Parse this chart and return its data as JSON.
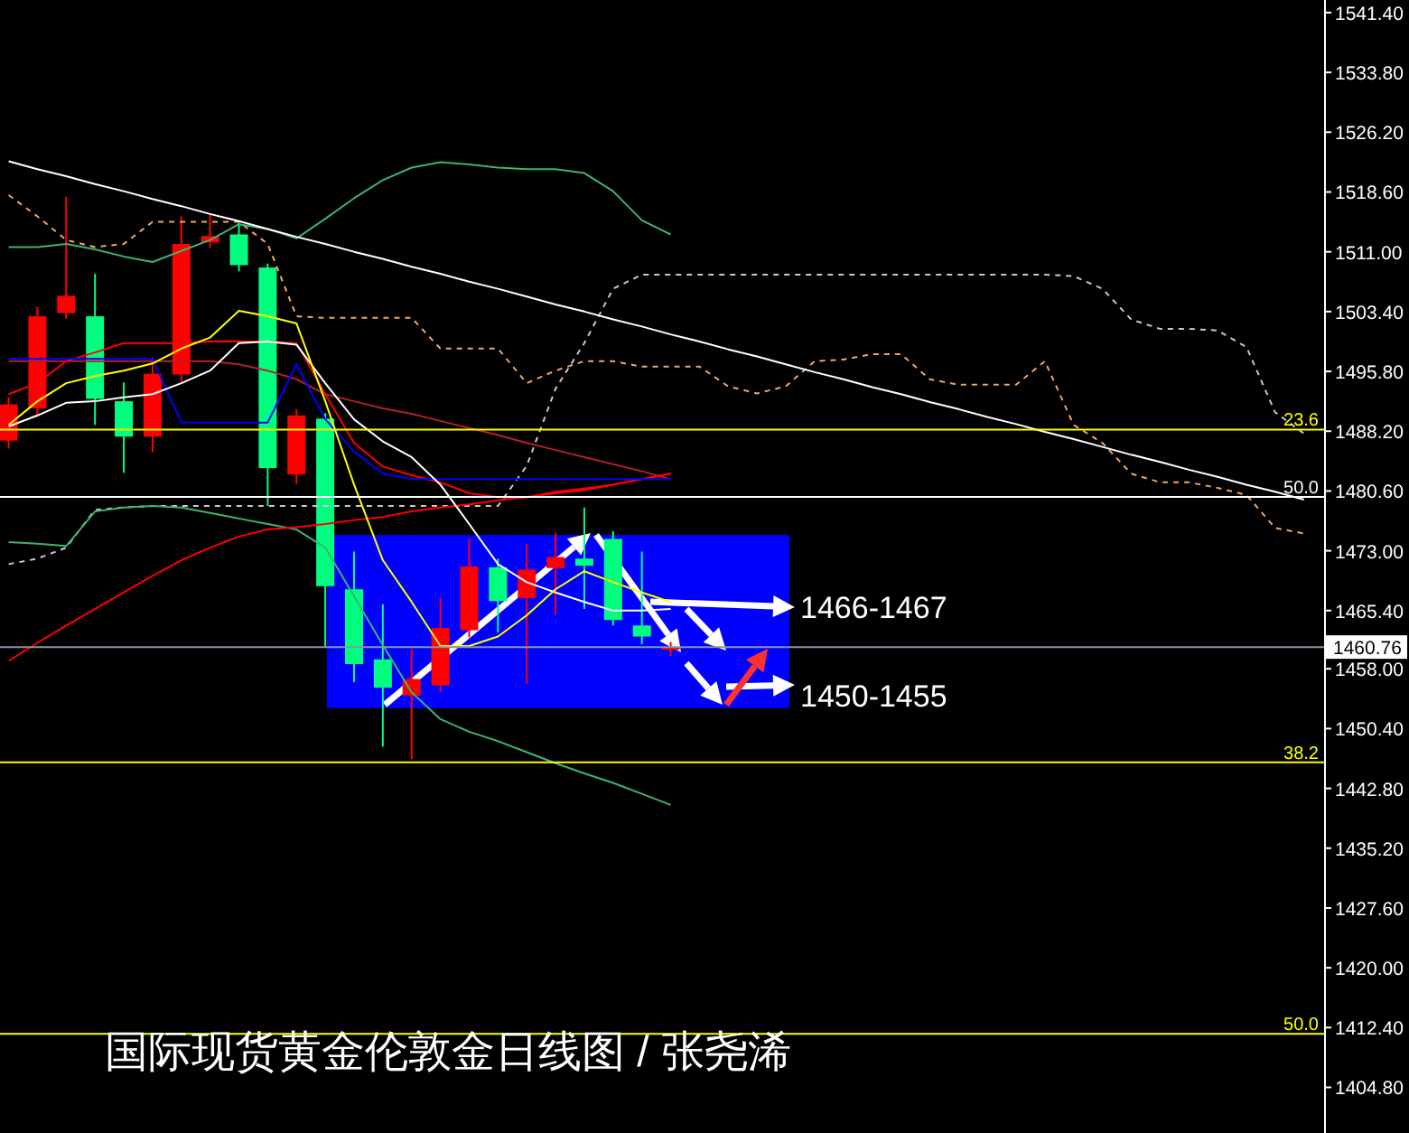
{
  "chart_data": {
    "type": "candlestick",
    "title": "国际现货黄金伦敦金日线图 / 张尧浠",
    "tick_labels": "y",
    "categories": [
      null,
      null,
      null,
      null,
      null,
      null,
      null,
      null,
      null,
      null,
      null,
      null,
      null,
      null,
      null,
      null,
      null,
      null,
      null,
      null,
      null,
      null,
      null,
      null,
      null,
      null,
      null,
      null,
      null,
      null,
      null,
      null,
      null,
      null,
      null,
      null,
      null,
      null,
      null,
      null,
      null,
      null,
      null,
      null,
      null,
      null
    ],
    "ohlc": [
      [
        1487.0,
        1492.5,
        1486.0,
        1491.6
      ],
      [
        1491.1,
        1504.0,
        1490.0,
        1502.8
      ],
      [
        1503.2,
        1518.0,
        1502.5,
        1505.4
      ],
      [
        1502.8,
        1508.2,
        1489.0,
        1492.3
      ],
      [
        1492.0,
        1494.4,
        1482.9,
        1487.5
      ],
      [
        1487.5,
        1497.6,
        1485.5,
        1495.5
      ],
      [
        1495.4,
        1515.5,
        1494.5,
        1512.0
      ],
      [
        1512.2,
        1515.9,
        1511.5,
        1513.0
      ],
      [
        1513.2,
        1514.7,
        1508.5,
        1509.3
      ],
      [
        1509.0,
        1509.5,
        1478.7,
        1483.5
      ],
      [
        1482.7,
        1491.0,
        1481.5,
        1490.2
      ],
      [
        1489.8,
        1490.5,
        1460.8,
        1468.5
      ],
      [
        1468.1,
        1472.9,
        1456.3,
        1458.6
      ],
      [
        1459.2,
        1466.2,
        1448.1,
        1455.6
      ],
      [
        1454.6,
        1460.5,
        1446.5,
        1456.7
      ],
      [
        1455.9,
        1467.0,
        1455.0,
        1463.2
      ],
      [
        1462.9,
        1474.5,
        1462.0,
        1471.0
      ],
      [
        1470.9,
        1472.0,
        1462.6,
        1466.6
      ],
      [
        1467.0,
        1473.9,
        1456.1,
        1470.6
      ],
      [
        1470.8,
        1475.3,
        1464.9,
        1472.2
      ],
      [
        1472.0,
        1478.5,
        1465.6,
        1471.1
      ],
      [
        1474.5,
        1475.5,
        1463.5,
        1464.2
      ],
      [
        1463.5,
        1472.9,
        1461.1,
        1462.1
      ],
      [
        1460.6,
        1461.4,
        1459.6,
        1460.76
      ],
      null,
      null,
      null,
      null,
      null,
      null,
      null,
      null,
      null,
      null,
      null,
      null,
      null,
      null,
      null,
      null,
      null,
      null,
      null,
      null,
      null,
      null
    ],
    "colors": [
      "#ff0000",
      "#ff0000",
      "#ff0000",
      "#00ff7f",
      "#00ff7f",
      "#ff0000",
      "#ff0000",
      "#ff0000",
      "#00ff7f",
      "#00ff7f",
      "#ff0000",
      "#00ff7f",
      "#00ff7f",
      "#00ff7f",
      "#ff0000",
      "#ff0000",
      "#ff0000",
      "#00ff7f",
      "#ff0000",
      "#ff0000",
      "#00ff7f",
      "#00ff7f",
      "#00ff7f",
      "#ff0000",
      null,
      null,
      null,
      null,
      null,
      null,
      null,
      null,
      null,
      null,
      null,
      null,
      null,
      null,
      null,
      null,
      null,
      null,
      null,
      null,
      null,
      null
    ],
    "series": [
      {
        "type": "line",
        "color": "#f4a460",
        "line_style": "dashed",
        "values": [
          1518.2,
          1515.5,
          1512.5,
          1511.6,
          1512.0,
          1514.8,
          1514.8,
          1514.8,
          1514.8,
          1512.0,
          1502.8,
          1502.6,
          1502.6,
          1502.6,
          1502.6,
          1498.7,
          1498.7,
          1498.7,
          1494.3,
          1495.9,
          1497.1,
          1497.1,
          1496.4,
          1496.4,
          1496.4,
          1493.9,
          1493.0,
          1493.9,
          1497.1,
          1497.3,
          1498.0,
          1498.0,
          1494.8,
          1494.1,
          1494.1,
          1494.1,
          1497.1,
          1489.0,
          1486.7,
          1482.8,
          1481.7,
          1481.7,
          1481.0,
          1480.1,
          1475.9,
          1475.2
        ]
      },
      {
        "type": "line",
        "color": "#d8bfd8",
        "line_style": "dashed",
        "values": [
          1471.3,
          1472.0,
          1473.4,
          1478.2,
          1478.5,
          1478.7,
          1478.7,
          1478.7,
          1478.7,
          1478.7,
          1478.7,
          1478.7,
          1478.7,
          1478.7,
          1478.7,
          1478.7,
          1478.7,
          1478.7,
          1483.8,
          1493.6,
          1499.4,
          1506.3,
          1508.1,
          1508.1,
          1508.1,
          1508.1,
          1508.1,
          1508.1,
          1508.1,
          1508.1,
          1508.1,
          1508.1,
          1508.1,
          1508.1,
          1508.1,
          1508.1,
          1508.1,
          1507.9,
          1506.3,
          1502.4,
          1501.2,
          1501.2,
          1501.0,
          1498.9,
          1490.6,
          1487.9
        ]
      },
      {
        "type": "line",
        "color": "#3cb371",
        "values": [
          1511.6,
          1511.6,
          1512.0,
          1511.3,
          1510.4,
          1509.7,
          1511.1,
          1512.5,
          1514.5,
          1513.9,
          1512.7,
          1515.2,
          1517.8,
          1520.1,
          1521.7,
          1522.4,
          1522.1,
          1521.7,
          1521.5,
          1521.5,
          1521.0,
          1518.7,
          1515.0,
          1513.2,
          null,
          null,
          null,
          null,
          null,
          null,
          null,
          null,
          null,
          null,
          null,
          null,
          null,
          null,
          null,
          null,
          null,
          null,
          null,
          null,
          null,
          null
        ]
      },
      {
        "type": "line",
        "color": "#3cb371",
        "values": [
          1474.1,
          1473.9,
          1473.6,
          1478.0,
          1478.5,
          1478.7,
          1478.5,
          1477.8,
          1477.1,
          1476.4,
          1475.7,
          1473.4,
          1467.2,
          1461.0,
          1455.0,
          1451.6,
          1450.0,
          1448.8,
          1447.4,
          1446.0,
          1444.7,
          1443.5,
          1442.1,
          1440.7,
          null,
          null,
          null,
          null,
          null,
          null,
          null,
          null,
          null,
          null,
          null,
          null,
          null,
          null,
          null,
          null,
          null,
          null,
          null,
          null,
          null,
          null
        ]
      },
      {
        "type": "line",
        "color": "#b22222",
        "values": [
          1497.1,
          1497.1,
          1497.1,
          1497.1,
          1497.1,
          1497.1,
          1497.1,
          1497.1,
          1496.7,
          1495.9,
          1494.8,
          1492.9,
          1492.0,
          1491.1,
          1490.4,
          1489.5,
          1488.6,
          1487.7,
          1486.7,
          1485.8,
          1484.9,
          1484.0,
          1483.1,
          1482.1,
          null,
          null,
          null,
          null,
          null,
          null,
          null,
          null,
          null,
          null,
          null,
          null,
          null,
          null,
          null,
          null,
          null,
          null,
          null,
          null,
          null,
          null
        ]
      },
      {
        "type": "line",
        "color": "#ff0000",
        "values": [
          1459.0,
          1461.3,
          1463.5,
          1465.6,
          1467.7,
          1469.8,
          1471.8,
          1473.4,
          1474.8,
          1475.7,
          1476.0,
          1476.4,
          1476.9,
          1477.3,
          1478.0,
          1478.5,
          1478.9,
          1479.4,
          1479.8,
          1480.3,
          1480.7,
          1481.4,
          1482.1,
          1482.8,
          null,
          null,
          null,
          null,
          null,
          null,
          null,
          null,
          null,
          null,
          null,
          null,
          null,
          null,
          null,
          null,
          null,
          null,
          null,
          null,
          null,
          null
        ]
      },
      {
        "type": "line",
        "color": "#ff0000",
        "values": [
          1492.9,
          1494.3,
          1497.1,
          1498.2,
          1499.4,
          1499.4,
          1499.4,
          1499.6,
          1499.6,
          1499.6,
          1499.4,
          1492.9,
          1486.7,
          1483.7,
          1482.6,
          1481.7,
          1480.3,
          1479.8,
          1479.8,
          1480.5,
          1480.9,
          1481.4,
          1482.1,
          1482.8,
          null,
          null,
          null,
          null,
          null,
          null,
          null,
          null,
          null,
          null,
          null,
          null,
          null,
          null,
          null,
          null,
          null,
          null,
          null,
          null,
          null,
          null
        ]
      },
      {
        "type": "line",
        "color": "#0000ff",
        "values": [
          1497.4,
          1497.4,
          1497.4,
          1497.4,
          1497.4,
          1497.4,
          1489.3,
          1489.3,
          1489.3,
          1489.3,
          1496.7,
          1489.7,
          1485.6,
          1482.8,
          1482.1,
          1482.1,
          1482.1,
          1482.1,
          1482.1,
          1482.1,
          1482.1,
          1482.1,
          1482.1,
          1482.1,
          null,
          null,
          null,
          null,
          null,
          null,
          null,
          null,
          null,
          null,
          null,
          null,
          null,
          null,
          null,
          null,
          null,
          null,
          null,
          null,
          null,
          null
        ]
      },
      {
        "type": "line",
        "color": "#ffffff",
        "values": [
          1488.8,
          1490.2,
          1491.8,
          1492.0,
          1492.5,
          1492.9,
          1494.3,
          1495.9,
          1499.4,
          1499.6,
          1499.2,
          1494.3,
          1489.7,
          1486.9,
          1484.9,
          1481.4,
          1476.4,
          1471.3,
          1469.0,
          1467.7,
          1466.5,
          1465.4,
          1465.4,
          1465.6,
          null,
          null,
          null,
          null,
          null,
          null,
          null,
          null,
          null,
          null,
          null,
          null,
          null,
          null,
          null,
          null,
          null,
          null,
          null,
          null,
          null,
          null
        ]
      },
      {
        "type": "line",
        "color": "#ffff00",
        "values": [
          1489.0,
          1492.0,
          1494.3,
          1495.2,
          1495.9,
          1496.8,
          1498.7,
          1500.1,
          1503.5,
          1502.8,
          1501.9,
          1492.0,
          1481.4,
          1471.8,
          1466.5,
          1460.9,
          1460.9,
          1462.1,
          1464.8,
          1468.1,
          1470.4,
          1469.0,
          1467.7,
          1466.5,
          null,
          null,
          null,
          null,
          null,
          null,
          null,
          null,
          null,
          null,
          null,
          null,
          null,
          null,
          null,
          null,
          null,
          null,
          null,
          null,
          null,
          null
        ]
      },
      {
        "type": "line",
        "color": "#ffffff",
        "values": [
          1522.5,
          1521.5,
          1520.6,
          1519.6,
          1518.7,
          1517.7,
          1516.8,
          1515.8,
          1514.9,
          1513.9,
          1512.9,
          1512.0,
          1511.0,
          1510.1,
          1509.1,
          1508.2,
          1507.2,
          1506.3,
          1505.3,
          1504.3,
          1503.4,
          1502.4,
          1501.5,
          1500.5,
          1499.6,
          1498.6,
          1497.7,
          1496.7,
          1495.7,
          1494.8,
          1493.8,
          1492.9,
          1491.9,
          1491.0,
          1490.0,
          1489.1,
          1488.1,
          1487.2,
          1486.2,
          1485.2,
          1484.3,
          1483.3,
          1482.4,
          1481.4,
          1480.5,
          1479.5
        ]
      }
    ],
    "ylim": [
      1399.0,
      1543.0
    ],
    "yticks": [
      {
        "value": 1404.8,
        "label": "1404.80"
      },
      {
        "value": 1412.4,
        "label": "1412.40"
      },
      {
        "value": 1420.0,
        "label": "1420.00"
      },
      {
        "value": 1427.6,
        "label": "1427.60"
      },
      {
        "value": 1435.2,
        "label": "1435.20"
      },
      {
        "value": 1442.8,
        "label": "1442.80"
      },
      {
        "value": 1450.4,
        "label": "1450.40"
      },
      {
        "value": 1458.0,
        "label": "1458.00"
      },
      {
        "value": 1465.4,
        "label": "1465.40"
      },
      {
        "value": 1473.0,
        "label": "1473.00"
      },
      {
        "value": 1480.6,
        "label": "1480.60"
      },
      {
        "value": 1488.2,
        "label": "1488.20"
      },
      {
        "value": 1495.8,
        "label": "1495.80"
      },
      {
        "value": 1503.4,
        "label": "1503.40"
      },
      {
        "value": 1511.0,
        "label": "1511.00"
      },
      {
        "value": 1518.6,
        "label": "1518.60"
      },
      {
        "value": 1526.2,
        "label": "1526.20"
      },
      {
        "value": 1533.8,
        "label": "1533.80"
      },
      {
        "value": 1541.4,
        "label": "1541.40"
      }
    ],
    "ref_lines": [
      {
        "axis": "y",
        "value": 1488.4,
        "color": "#ffff00"
      },
      {
        "axis": "y",
        "value": 1479.85,
        "color": "#ffffff"
      },
      {
        "axis": "y",
        "value": 1460.76,
        "label": "1460.76"
      },
      {
        "axis": "y",
        "value": 1446.1,
        "color": "#ffff00"
      },
      {
        "axis": "y",
        "value": 1411.6,
        "color": "#ffff00"
      }
    ],
    "bands": [
      {
        "axis": "y",
        "from": 1453.0,
        "to": 1475.0,
        "color": "#0000ff"
      }
    ],
    "annotations": [
      "1466-1467",
      "1450-1455",
      {
        "text": "23.6",
        "y": 1488.4
      },
      {
        "text": "50.0",
        "y": 1479.85
      },
      {
        "text": "38.2",
        "y": 1446.1
      },
      {
        "text": "50.0",
        "y": 1411.6
      }
    ]
  }
}
